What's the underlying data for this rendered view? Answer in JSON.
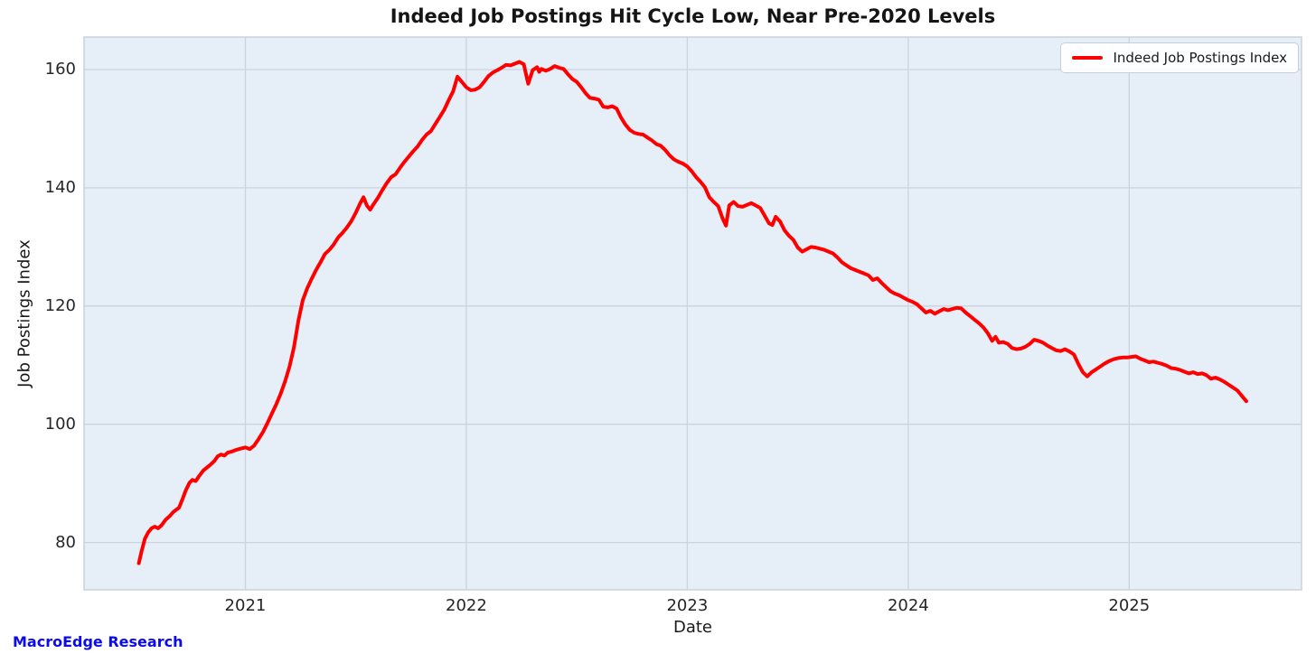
{
  "watermark": "MacroEdge Research",
  "chart_data": {
    "type": "line",
    "title": "Indeed Job Postings Hit Cycle Low, Near Pre-2020 Levels",
    "xlabel": "Date",
    "ylabel": "Job Postings Index",
    "grid": true,
    "legend_position": "upper right",
    "x_ticks": [
      2021,
      2022,
      2023,
      2024,
      2025
    ],
    "y_ticks": [
      80,
      100,
      120,
      140,
      160
    ],
    "xlim": [
      2020.27,
      2025.78
    ],
    "ylim": [
      72.0,
      165.5
    ],
    "colors": {
      "line": "#ff0000",
      "plot_bg": "#e6eef8",
      "grid": "#cbd3de",
      "spine": "#ccd2d9",
      "watermark": "#0b0bee",
      "tick_text": "#262626"
    },
    "series": [
      {
        "name": "Indeed Job Postings Index",
        "color": "#ff0000",
        "points": [
          [
            2020.518,
            76.5
          ],
          [
            2020.53,
            78.5
          ],
          [
            2020.545,
            80.6
          ],
          [
            2020.56,
            81.7
          ],
          [
            2020.575,
            82.4
          ],
          [
            2020.59,
            82.7
          ],
          [
            2020.605,
            82.4
          ],
          [
            2020.62,
            82.9
          ],
          [
            2020.64,
            83.9
          ],
          [
            2020.658,
            84.5
          ],
          [
            2020.675,
            85.2
          ],
          [
            2020.7,
            85.9
          ],
          [
            2020.715,
            87.3
          ],
          [
            2020.73,
            88.8
          ],
          [
            2020.747,
            90.1
          ],
          [
            2020.76,
            90.6
          ],
          [
            2020.775,
            90.4
          ],
          [
            2020.79,
            91.2
          ],
          [
            2020.81,
            92.2
          ],
          [
            2020.84,
            93.1
          ],
          [
            2020.86,
            93.8
          ],
          [
            2020.875,
            94.6
          ],
          [
            2020.89,
            94.9
          ],
          [
            2020.905,
            94.7
          ],
          [
            2020.92,
            95.2
          ],
          [
            2020.94,
            95.4
          ],
          [
            2020.96,
            95.7
          ],
          [
            2020.98,
            95.9
          ],
          [
            2021.0,
            96.1
          ],
          [
            2021.02,
            95.8
          ],
          [
            2021.04,
            96.4
          ],
          [
            2021.06,
            97.5
          ],
          [
            2021.08,
            98.7
          ],
          [
            2021.1,
            100.2
          ],
          [
            2021.12,
            101.8
          ],
          [
            2021.14,
            103.4
          ],
          [
            2021.16,
            105.2
          ],
          [
            2021.18,
            107.3
          ],
          [
            2021.2,
            109.8
          ],
          [
            2021.22,
            113.0
          ],
          [
            2021.24,
            117.5
          ],
          [
            2021.26,
            121.0
          ],
          [
            2021.28,
            123.0
          ],
          [
            2021.3,
            124.6
          ],
          [
            2021.32,
            126.1
          ],
          [
            2021.34,
            127.4
          ],
          [
            2021.36,
            128.8
          ],
          [
            2021.38,
            129.5
          ],
          [
            2021.4,
            130.4
          ],
          [
            2021.42,
            131.6
          ],
          [
            2021.44,
            132.4
          ],
          [
            2021.46,
            133.3
          ],
          [
            2021.48,
            134.4
          ],
          [
            2021.5,
            135.8
          ],
          [
            2021.52,
            137.4
          ],
          [
            2021.535,
            138.4
          ],
          [
            2021.55,
            137.0
          ],
          [
            2021.565,
            136.3
          ],
          [
            2021.58,
            137.2
          ],
          [
            2021.6,
            138.3
          ],
          [
            2021.62,
            139.6
          ],
          [
            2021.64,
            140.8
          ],
          [
            2021.66,
            141.8
          ],
          [
            2021.68,
            142.3
          ],
          [
            2021.7,
            143.4
          ],
          [
            2021.72,
            144.4
          ],
          [
            2021.74,
            145.3
          ],
          [
            2021.76,
            146.2
          ],
          [
            2021.78,
            147.0
          ],
          [
            2021.8,
            148.1
          ],
          [
            2021.82,
            149.0
          ],
          [
            2021.84,
            149.6
          ],
          [
            2021.86,
            150.8
          ],
          [
            2021.88,
            152.0
          ],
          [
            2021.9,
            153.2
          ],
          [
            2021.92,
            154.8
          ],
          [
            2021.94,
            156.3
          ],
          [
            2021.96,
            158.8
          ],
          [
            2021.98,
            157.9
          ],
          [
            2022.0,
            157.0
          ],
          [
            2022.02,
            156.5
          ],
          [
            2022.04,
            156.6
          ],
          [
            2022.06,
            157.0
          ],
          [
            2022.08,
            157.9
          ],
          [
            2022.1,
            158.9
          ],
          [
            2022.12,
            159.5
          ],
          [
            2022.14,
            159.9
          ],
          [
            2022.16,
            160.3
          ],
          [
            2022.18,
            160.8
          ],
          [
            2022.2,
            160.7
          ],
          [
            2022.22,
            161.0
          ],
          [
            2022.24,
            161.3
          ],
          [
            2022.26,
            160.9
          ],
          [
            2022.28,
            157.6
          ],
          [
            2022.3,
            159.9
          ],
          [
            2022.32,
            160.4
          ],
          [
            2022.33,
            159.6
          ],
          [
            2022.34,
            160.1
          ],
          [
            2022.36,
            159.8
          ],
          [
            2022.38,
            160.1
          ],
          [
            2022.4,
            160.6
          ],
          [
            2022.42,
            160.3
          ],
          [
            2022.44,
            160.1
          ],
          [
            2022.46,
            159.2
          ],
          [
            2022.48,
            158.4
          ],
          [
            2022.5,
            157.9
          ],
          [
            2022.52,
            157.0
          ],
          [
            2022.54,
            156.0
          ],
          [
            2022.56,
            155.2
          ],
          [
            2022.58,
            155.1
          ],
          [
            2022.6,
            154.9
          ],
          [
            2022.62,
            153.7
          ],
          [
            2022.64,
            153.6
          ],
          [
            2022.66,
            153.8
          ],
          [
            2022.68,
            153.4
          ],
          [
            2022.7,
            151.9
          ],
          [
            2022.72,
            150.7
          ],
          [
            2022.74,
            149.8
          ],
          [
            2022.76,
            149.3
          ],
          [
            2022.78,
            149.1
          ],
          [
            2022.8,
            149.0
          ],
          [
            2022.82,
            148.5
          ],
          [
            2022.84,
            148.0
          ],
          [
            2022.86,
            147.4
          ],
          [
            2022.88,
            147.1
          ],
          [
            2022.9,
            146.4
          ],
          [
            2022.92,
            145.5
          ],
          [
            2022.94,
            144.8
          ],
          [
            2022.96,
            144.4
          ],
          [
            2022.98,
            144.1
          ],
          [
            2023.0,
            143.6
          ],
          [
            2023.02,
            142.8
          ],
          [
            2023.04,
            141.8
          ],
          [
            2023.06,
            141.0
          ],
          [
            2023.08,
            140.1
          ],
          [
            2023.1,
            138.4
          ],
          [
            2023.12,
            137.6
          ],
          [
            2023.14,
            136.9
          ],
          [
            2023.16,
            134.8
          ],
          [
            2023.175,
            133.6
          ],
          [
            2023.19,
            137.0
          ],
          [
            2023.21,
            137.6
          ],
          [
            2023.23,
            136.9
          ],
          [
            2023.25,
            136.8
          ],
          [
            2023.27,
            137.1
          ],
          [
            2023.29,
            137.4
          ],
          [
            2023.31,
            137.0
          ],
          [
            2023.33,
            136.6
          ],
          [
            2023.35,
            135.3
          ],
          [
            2023.37,
            134.0
          ],
          [
            2023.385,
            133.7
          ],
          [
            2023.4,
            135.1
          ],
          [
            2023.42,
            134.3
          ],
          [
            2023.44,
            132.8
          ],
          [
            2023.46,
            131.9
          ],
          [
            2023.48,
            131.2
          ],
          [
            2023.5,
            129.9
          ],
          [
            2023.52,
            129.2
          ],
          [
            2023.54,
            129.6
          ],
          [
            2023.56,
            130.0
          ],
          [
            2023.58,
            129.9
          ],
          [
            2023.6,
            129.7
          ],
          [
            2023.62,
            129.5
          ],
          [
            2023.64,
            129.2
          ],
          [
            2023.66,
            128.9
          ],
          [
            2023.68,
            128.2
          ],
          [
            2023.7,
            127.4
          ],
          [
            2023.72,
            126.9
          ],
          [
            2023.74,
            126.4
          ],
          [
            2023.76,
            126.1
          ],
          [
            2023.78,
            125.8
          ],
          [
            2023.8,
            125.5
          ],
          [
            2023.82,
            125.2
          ],
          [
            2023.84,
            124.4
          ],
          [
            2023.86,
            124.7
          ],
          [
            2023.88,
            123.9
          ],
          [
            2023.9,
            123.2
          ],
          [
            2023.92,
            122.5
          ],
          [
            2023.94,
            122.1
          ],
          [
            2023.96,
            121.8
          ],
          [
            2023.98,
            121.4
          ],
          [
            2024.0,
            121.0
          ],
          [
            2024.02,
            120.7
          ],
          [
            2024.04,
            120.3
          ],
          [
            2024.06,
            119.6
          ],
          [
            2024.08,
            118.9
          ],
          [
            2024.1,
            119.2
          ],
          [
            2024.12,
            118.7
          ],
          [
            2024.14,
            119.1
          ],
          [
            2024.16,
            119.5
          ],
          [
            2024.18,
            119.3
          ],
          [
            2024.2,
            119.5
          ],
          [
            2024.22,
            119.7
          ],
          [
            2024.24,
            119.6
          ],
          [
            2024.26,
            118.9
          ],
          [
            2024.28,
            118.3
          ],
          [
            2024.3,
            117.7
          ],
          [
            2024.32,
            117.1
          ],
          [
            2024.34,
            116.4
          ],
          [
            2024.36,
            115.4
          ],
          [
            2024.38,
            114.1
          ],
          [
            2024.395,
            114.8
          ],
          [
            2024.41,
            113.8
          ],
          [
            2024.43,
            113.9
          ],
          [
            2024.45,
            113.6
          ],
          [
            2024.47,
            112.9
          ],
          [
            2024.49,
            112.7
          ],
          [
            2024.51,
            112.8
          ],
          [
            2024.53,
            113.1
          ],
          [
            2024.55,
            113.6
          ],
          [
            2024.57,
            114.3
          ],
          [
            2024.59,
            114.1
          ],
          [
            2024.61,
            113.8
          ],
          [
            2024.63,
            113.3
          ],
          [
            2024.65,
            112.9
          ],
          [
            2024.67,
            112.5
          ],
          [
            2024.69,
            112.4
          ],
          [
            2024.71,
            112.7
          ],
          [
            2024.73,
            112.3
          ],
          [
            2024.75,
            111.8
          ],
          [
            2024.77,
            110.2
          ],
          [
            2024.79,
            108.8
          ],
          [
            2024.81,
            108.1
          ],
          [
            2024.83,
            108.8
          ],
          [
            2024.85,
            109.3
          ],
          [
            2024.87,
            109.8
          ],
          [
            2024.89,
            110.3
          ],
          [
            2024.91,
            110.7
          ],
          [
            2024.93,
            111.0
          ],
          [
            2024.95,
            111.2
          ],
          [
            2024.97,
            111.3
          ],
          [
            2024.99,
            111.3
          ],
          [
            2025.01,
            111.4
          ],
          [
            2025.03,
            111.5
          ],
          [
            2025.05,
            111.1
          ],
          [
            2025.07,
            110.8
          ],
          [
            2025.09,
            110.5
          ],
          [
            2025.11,
            110.6
          ],
          [
            2025.13,
            110.4
          ],
          [
            2025.15,
            110.2
          ],
          [
            2025.17,
            109.9
          ],
          [
            2025.19,
            109.5
          ],
          [
            2025.21,
            109.4
          ],
          [
            2025.23,
            109.2
          ],
          [
            2025.25,
            108.9
          ],
          [
            2025.27,
            108.6
          ],
          [
            2025.29,
            108.8
          ],
          [
            2025.31,
            108.5
          ],
          [
            2025.33,
            108.6
          ],
          [
            2025.35,
            108.3
          ],
          [
            2025.37,
            107.7
          ],
          [
            2025.39,
            107.9
          ],
          [
            2025.41,
            107.6
          ],
          [
            2025.43,
            107.2
          ],
          [
            2025.45,
            106.7
          ],
          [
            2025.47,
            106.2
          ],
          [
            2025.49,
            105.7
          ],
          [
            2025.51,
            104.8
          ],
          [
            2025.53,
            103.9
          ]
        ]
      }
    ]
  }
}
